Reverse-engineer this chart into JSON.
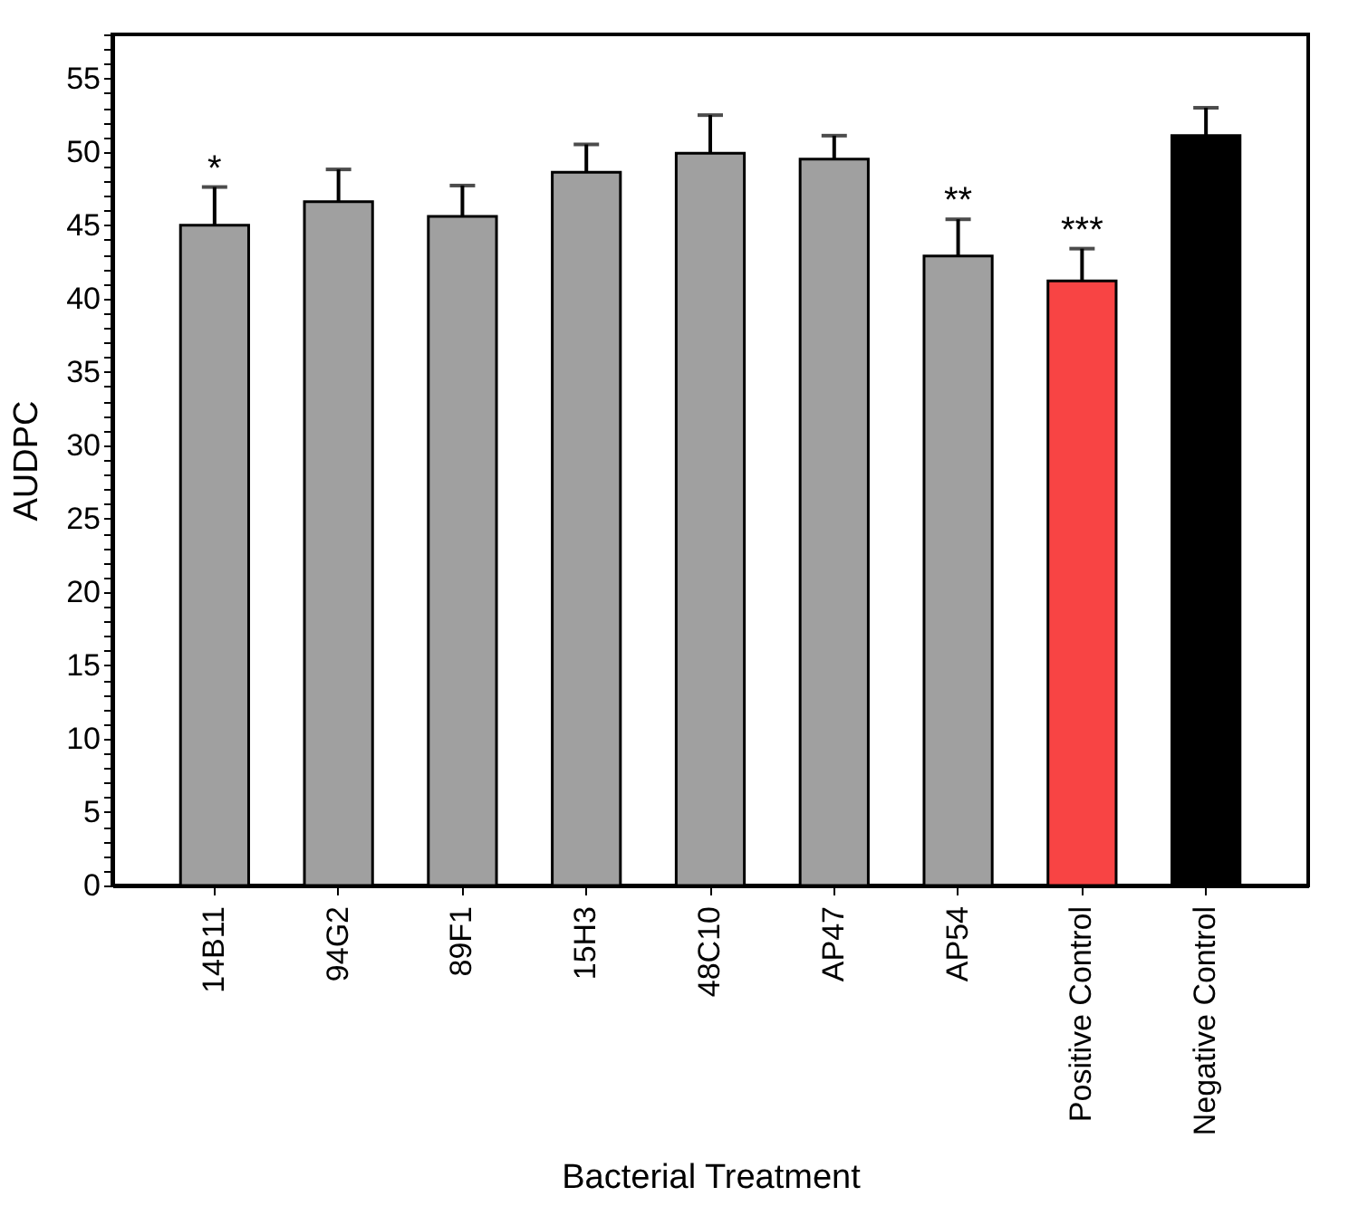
{
  "chart_data": {
    "type": "bar",
    "xlabel": "Bacterial Treatment",
    "ylabel": "AUDPC",
    "categories": [
      "14B11",
      "94G2",
      "89F1",
      "15H3",
      "48C10",
      "AP47",
      "AP54",
      "Positive Control",
      "Negative Control"
    ],
    "values": [
      45.0,
      46.6,
      45.6,
      48.6,
      49.9,
      49.5,
      42.9,
      41.2,
      51.1
    ],
    "colors": [
      "#a0a0a0",
      "#a0a0a0",
      "#a0a0a0",
      "#a0a0a0",
      "#a0a0a0",
      "#a0a0a0",
      "#a0a0a0",
      "#f84444",
      "#000000"
    ],
    "errors": [
      [
        45.0,
        47.6
      ],
      [
        46.6,
        48.8
      ],
      [
        45.6,
        47.7
      ],
      [
        48.6,
        50.5
      ],
      [
        49.9,
        52.5
      ],
      [
        49.5,
        51.1
      ],
      [
        42.9,
        45.4
      ],
      [
        41.2,
        43.4
      ],
      [
        51.1,
        53.0
      ]
    ],
    "ylim": [
      0,
      58
    ],
    "yticks": [
      0,
      {
        "value": 1,
        "label": null
      },
      {
        "value": 2,
        "label": null
      },
      {
        "value": 3,
        "label": null
      },
      {
        "value": 4,
        "label": null
      },
      5,
      {
        "value": 6,
        "label": null
      },
      {
        "value": 7,
        "label": null
      },
      {
        "value": 8,
        "label": null
      },
      {
        "value": 9,
        "label": null
      },
      10,
      {
        "value": 11,
        "label": null
      },
      {
        "value": 12,
        "label": null
      },
      {
        "value": 13,
        "label": null
      },
      {
        "value": 14,
        "label": null
      },
      15,
      {
        "value": 16,
        "label": null
      },
      {
        "value": 17,
        "label": null
      },
      {
        "value": 18,
        "label": null
      },
      {
        "value": 19,
        "label": null
      },
      20,
      {
        "value": 21,
        "label": null
      },
      {
        "value": 22,
        "label": null
      },
      {
        "value": 23,
        "label": null
      },
      {
        "value": 24,
        "label": null
      },
      25,
      {
        "value": 26,
        "label": null
      },
      {
        "value": 27,
        "label": null
      },
      {
        "value": 28,
        "label": null
      },
      {
        "value": 29,
        "label": null
      },
      30,
      {
        "value": 31,
        "label": null
      },
      {
        "value": 32,
        "label": null
      },
      {
        "value": 33,
        "label": null
      },
      {
        "value": 34,
        "label": null
      },
      35,
      {
        "value": 36,
        "label": null
      },
      {
        "value": 37,
        "label": null
      },
      {
        "value": 38,
        "label": null
      },
      {
        "value": 39,
        "label": null
      },
      40,
      {
        "value": 41,
        "label": null
      },
      {
        "value": 42,
        "label": null
      },
      {
        "value": 43,
        "label": null
      },
      {
        "value": 44,
        "label": null
      },
      45,
      {
        "value": 46,
        "label": null
      },
      {
        "value": 47,
        "label": null
      },
      {
        "value": 48,
        "label": null
      },
      {
        "value": 49,
        "label": null
      },
      50,
      {
        "value": 51,
        "label": null
      },
      {
        "value": 52,
        "label": null
      },
      {
        "value": 53,
        "label": null
      },
      {
        "value": 54,
        "label": null
      },
      55,
      {
        "value": 56,
        "label": null
      },
      {
        "value": 57,
        "label": null
      },
      {
        "value": 58,
        "label": null
      }
    ],
    "annotations": [
      {
        "text": "*",
        "x": "14B11",
        "y": 47.6
      },
      {
        "text": "**",
        "x": "AP54",
        "y": 45.4
      },
      {
        "text": "***",
        "x": "Positive Control",
        "y": 43.4
      }
    ],
    "grid": false
  }
}
